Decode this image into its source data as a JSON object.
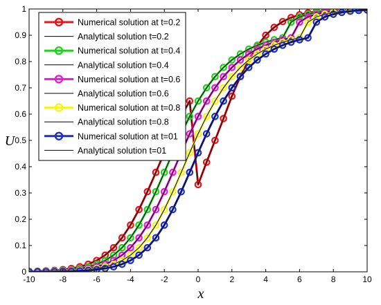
{
  "chart_data": {
    "type": "line",
    "title": "",
    "xlabel": "x",
    "ylabel": "U",
    "xlim": [
      -10,
      10
    ],
    "ylim": [
      0,
      1
    ],
    "grid": false,
    "legend_position": "top-left",
    "x_ticks": [
      -10,
      -8,
      -6,
      -4,
      -2,
      0,
      2,
      4,
      6,
      8,
      10
    ],
    "y_ticks": [
      0,
      0.1,
      0.2,
      0.3,
      0.4,
      0.5,
      0.6,
      0.7,
      0.8,
      0.9,
      1
    ],
    "x_tick_labels": [
      "-10",
      "-8",
      "-6",
      "-4",
      "-2",
      "0",
      "2",
      "4",
      "6",
      "8",
      "10"
    ],
    "y_tick_labels": [
      "0",
      "0.1",
      "0.2",
      "0.3",
      "0.4",
      "0.5",
      "0.6",
      "0.7",
      "0.8",
      "0.9",
      "1"
    ],
    "x": [
      -10,
      -9.5,
      -9,
      -8.5,
      -8,
      -7.5,
      -7,
      -6.5,
      -6,
      -5.5,
      -5,
      -4.5,
      -4,
      -3.5,
      -3,
      -2.5,
      -2,
      -1.5,
      -1,
      -0.5,
      0,
      0.5,
      1,
      1.5,
      2,
      2.5,
      3,
      3.5,
      4,
      4.5,
      5,
      5.5,
      6,
      6.5,
      7,
      7.5,
      8,
      8.5,
      9,
      9.5,
      10
    ],
    "series": [
      {
        "name": "Numerical solution at t=0.2",
        "kind": "numerical",
        "color": "#e8141a",
        "values": [
          0.0015,
          0.0023,
          0.0035,
          0.0054,
          0.0083,
          0.0127,
          0.0192,
          0.0289,
          0.0431,
          0.0634,
          0.0916,
          0.1294,
          0.1778,
          0.2368,
          0.3048,
          0.3784,
          0.4531,
          0.525,
          0.5912,
          0.6498,
          0.3318,
          0.4169,
          0.5,
          0.5831,
          0.6682,
          0.7436,
          0.8077,
          0.8596,
          0.9001,
          0.9301,
          0.9519,
          0.9672,
          0.9779,
          0.9852,
          0.9901,
          0.9934,
          0.9956,
          0.9971,
          0.9981,
          0.9987,
          0.9992
        ]
      },
      {
        "name": "Analytical solution t=0.2",
        "kind": "analytical",
        "color": "#000000",
        "values": [
          0.0015,
          0.0023,
          0.0035,
          0.0054,
          0.0083,
          0.0127,
          0.0192,
          0.0289,
          0.0431,
          0.0634,
          0.0916,
          0.1294,
          0.1778,
          0.2368,
          0.3048,
          0.3784,
          0.4531,
          0.525,
          0.5912,
          0.6498,
          0.3318,
          0.4169,
          0.5,
          0.5831,
          0.6682,
          0.7436,
          0.8077,
          0.8596,
          0.9001,
          0.9301,
          0.9519,
          0.9672,
          0.9779,
          0.9852,
          0.9901,
          0.9934,
          0.9956,
          0.9971,
          0.9981,
          0.9987,
          0.9992
        ]
      },
      {
        "name": "Numerical solution at t=0.4",
        "kind": "numerical",
        "color": "#22d01f",
        "values": [
          0.001,
          0.0015,
          0.0023,
          0.0035,
          0.0054,
          0.0083,
          0.0127,
          0.0192,
          0.0289,
          0.0431,
          0.0634,
          0.0916,
          0.1294,
          0.1778,
          0.2368,
          0.3048,
          0.3784,
          0.4531,
          0.525,
          0.5912,
          0.6498,
          0.7002,
          0.7426,
          0.7776,
          0.8061,
          0.829,
          0.8474,
          0.862,
          0.8737,
          0.883,
          0.8904,
          0.95,
          0.97,
          0.98,
          0.987,
          0.9915,
          0.9945,
          0.9964,
          0.9977,
          0.9985,
          0.999
        ]
      },
      {
        "name": "Analytical solution t=0.4",
        "kind": "analytical",
        "color": "#000000",
        "values": [
          0.001,
          0.0015,
          0.0023,
          0.0035,
          0.0054,
          0.0083,
          0.0127,
          0.0192,
          0.0289,
          0.0431,
          0.0634,
          0.0916,
          0.1294,
          0.1778,
          0.2368,
          0.3048,
          0.3784,
          0.4531,
          0.525,
          0.5912,
          0.6498,
          0.7002,
          0.7426,
          0.7776,
          0.8061,
          0.829,
          0.8474,
          0.862,
          0.8737,
          0.883,
          0.8904,
          0.95,
          0.97,
          0.98,
          0.987,
          0.9915,
          0.9945,
          0.9964,
          0.9977,
          0.9985,
          0.999
        ]
      },
      {
        "name": "Numerical solution at t=0.6",
        "kind": "numerical",
        "color": "#e81ad8",
        "values": [
          0.0006,
          0.001,
          0.0015,
          0.0023,
          0.0035,
          0.0054,
          0.0083,
          0.0127,
          0.0192,
          0.0289,
          0.0431,
          0.0634,
          0.0916,
          0.1294,
          0.1778,
          0.2368,
          0.3048,
          0.3784,
          0.4531,
          0.525,
          0.5912,
          0.6498,
          0.7002,
          0.7426,
          0.7776,
          0.8061,
          0.829,
          0.8474,
          0.862,
          0.8737,
          0.883,
          0.8904,
          0.95,
          0.97,
          0.98,
          0.987,
          0.9915,
          0.9945,
          0.9964,
          0.9977,
          0.9985
        ]
      },
      {
        "name": "Analytical solution t=0.6",
        "kind": "analytical",
        "color": "#000000",
        "values": [
          0.0006,
          0.001,
          0.0015,
          0.0023,
          0.0035,
          0.0054,
          0.0083,
          0.0127,
          0.0192,
          0.0289,
          0.0431,
          0.0634,
          0.0916,
          0.1294,
          0.1778,
          0.2368,
          0.3048,
          0.3784,
          0.4531,
          0.525,
          0.5912,
          0.6498,
          0.7002,
          0.7426,
          0.7776,
          0.8061,
          0.829,
          0.8474,
          0.862,
          0.8737,
          0.883,
          0.8904,
          0.95,
          0.97,
          0.98,
          0.987,
          0.9915,
          0.9945,
          0.9964,
          0.9977,
          0.9985
        ]
      },
      {
        "name": "Numerical solution at t=0.8",
        "kind": "numerical",
        "color": "#f5f51a",
        "values": [
          0.0004,
          0.0006,
          0.001,
          0.0015,
          0.0023,
          0.0035,
          0.0054,
          0.0083,
          0.0127,
          0.0192,
          0.0289,
          0.0431,
          0.0634,
          0.0916,
          0.1294,
          0.1778,
          0.2368,
          0.3048,
          0.3784,
          0.4531,
          0.525,
          0.5912,
          0.6498,
          0.7002,
          0.7426,
          0.7776,
          0.8061,
          0.829,
          0.8474,
          0.862,
          0.8737,
          0.883,
          0.8904,
          0.95,
          0.97,
          0.98,
          0.987,
          0.9915,
          0.9945,
          0.9964,
          0.9977
        ]
      },
      {
        "name": "Analytical solution t=0.8",
        "kind": "analytical",
        "color": "#000000",
        "values": [
          0.0004,
          0.0006,
          0.001,
          0.0015,
          0.0023,
          0.0035,
          0.0054,
          0.0083,
          0.0127,
          0.0192,
          0.0289,
          0.0431,
          0.0634,
          0.0916,
          0.1294,
          0.1778,
          0.2368,
          0.3048,
          0.3784,
          0.4531,
          0.525,
          0.5912,
          0.6498,
          0.7002,
          0.7426,
          0.7776,
          0.8061,
          0.829,
          0.8474,
          0.862,
          0.8737,
          0.883,
          0.8904,
          0.95,
          0.97,
          0.98,
          0.987,
          0.9915,
          0.9945,
          0.9964,
          0.9977
        ]
      },
      {
        "name": "Numerical solution at t=01",
        "kind": "numerical",
        "color": "#1f2fc2",
        "values": [
          0.0002,
          0.0004,
          0.0006,
          0.001,
          0.0015,
          0.0023,
          0.0035,
          0.0054,
          0.0083,
          0.0127,
          0.0192,
          0.0289,
          0.0431,
          0.0634,
          0.0916,
          0.1294,
          0.1778,
          0.2368,
          0.3048,
          0.3784,
          0.4531,
          0.525,
          0.5912,
          0.6498,
          0.7002,
          0.7426,
          0.7776,
          0.8061,
          0.829,
          0.8474,
          0.862,
          0.8737,
          0.883,
          0.8904,
          0.95,
          0.97,
          0.98,
          0.987,
          0.9915,
          0.9945,
          0.9964
        ]
      },
      {
        "name": "Analytical solution t=01",
        "kind": "analytical",
        "color": "#000000",
        "values": [
          0.0002,
          0.0004,
          0.0006,
          0.001,
          0.0015,
          0.0023,
          0.0035,
          0.0054,
          0.0083,
          0.0127,
          0.0192,
          0.0289,
          0.0431,
          0.0634,
          0.0916,
          0.1294,
          0.1778,
          0.2368,
          0.3048,
          0.3784,
          0.4531,
          0.525,
          0.5912,
          0.6498,
          0.7002,
          0.7426,
          0.7776,
          0.8061,
          0.829,
          0.8474,
          0.862,
          0.8737,
          0.883,
          0.8904,
          0.95,
          0.97,
          0.98,
          0.987,
          0.9915,
          0.9945,
          0.9964
        ]
      }
    ]
  }
}
